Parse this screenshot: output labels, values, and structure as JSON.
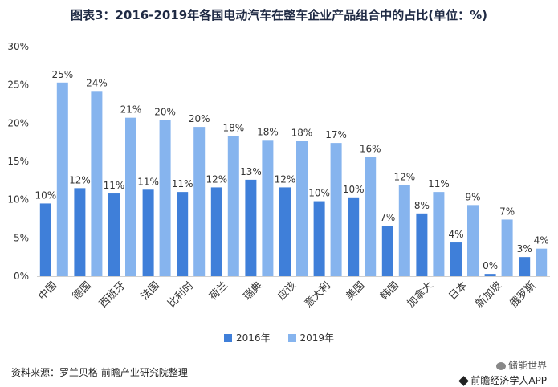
{
  "chart_data": {
    "type": "bar",
    "title": "图表3：2016-2019年各国电动汽车在整车企业产品组合中的占比(单位：%)",
    "categories": [
      "中国",
      "德国",
      "西班牙",
      "法国",
      "比利时",
      "荷兰",
      "瑞典",
      "应该",
      "意大利",
      "美国",
      "韩国",
      "加拿大",
      "日本",
      "新加坡",
      "俄罗斯"
    ],
    "series": [
      {
        "name": "2016年",
        "values": [
          9.5,
          11.5,
          10.8,
          11.3,
          11.0,
          11.6,
          12.6,
          11.6,
          9.8,
          10.3,
          6.6,
          8.2,
          4.4,
          0.3,
          2.5
        ],
        "labels": [
          "10%",
          "12%",
          "11%",
          "11%",
          "11%",
          "12%",
          "13%",
          "12%",
          "10%",
          "10%",
          "7%",
          "8%",
          "4%",
          "0%",
          "3%"
        ],
        "color": "#3f7fd9"
      },
      {
        "name": "2019年",
        "values": [
          25.3,
          24.2,
          20.7,
          20.4,
          19.5,
          18.3,
          17.8,
          17.7,
          17.4,
          15.6,
          11.9,
          11.0,
          9.3,
          7.4,
          3.6
        ],
        "labels": [
          "25%",
          "24%",
          "21%",
          "20%",
          "20%",
          "18%",
          "18%",
          "18%",
          "17%",
          "16%",
          "12%",
          "11%",
          "9%",
          "7%",
          "4%"
        ],
        "color": "#86b4ee"
      }
    ],
    "ylim": [
      0,
      30
    ],
    "yticks": [
      0,
      5,
      10,
      15,
      20,
      25,
      30
    ],
    "ytick_labels": [
      "0%",
      "5%",
      "10%",
      "15%",
      "20%",
      "25%",
      "30%"
    ],
    "legend": "bottom-center",
    "grid": false
  },
  "source": "资料来源：罗兰贝格 前瞻产业研究院整理",
  "brand": {
    "line1": "储能世界",
    "line2": "前瞻经济学人APP"
  }
}
